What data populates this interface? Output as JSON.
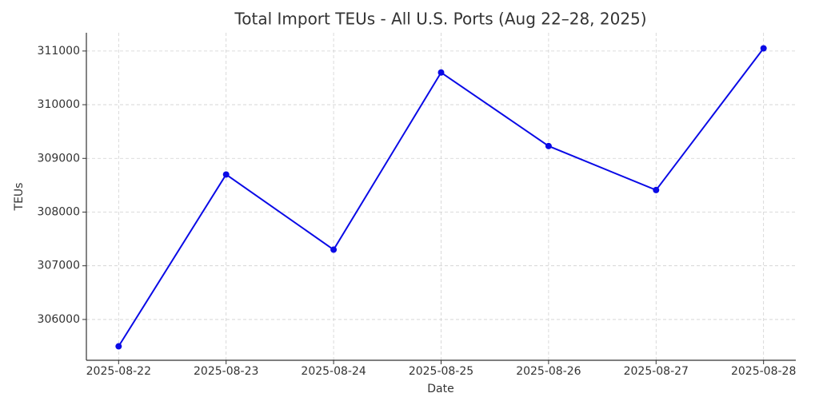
{
  "chart_data": {
    "type": "line",
    "title": "Total Import TEUs - All U.S. Ports (Aug 22–28, 2025)",
    "x_label": "Date",
    "y_label": "TEUs",
    "categories": [
      "2025-08-22",
      "2025-08-23",
      "2025-08-24",
      "2025-08-25",
      "2025-08-26",
      "2025-08-27",
      "2025-08-28"
    ],
    "series": [
      {
        "name": "TEUs",
        "color": "#0a0ae6",
        "values": [
          305500,
          308700,
          307300,
          310600,
          309230,
          308410,
          311050
        ]
      }
    ],
    "ylim": [
      305240,
      311340
    ],
    "yticks": [
      306000,
      307000,
      308000,
      309000,
      310000,
      311000
    ],
    "grid": true
  }
}
